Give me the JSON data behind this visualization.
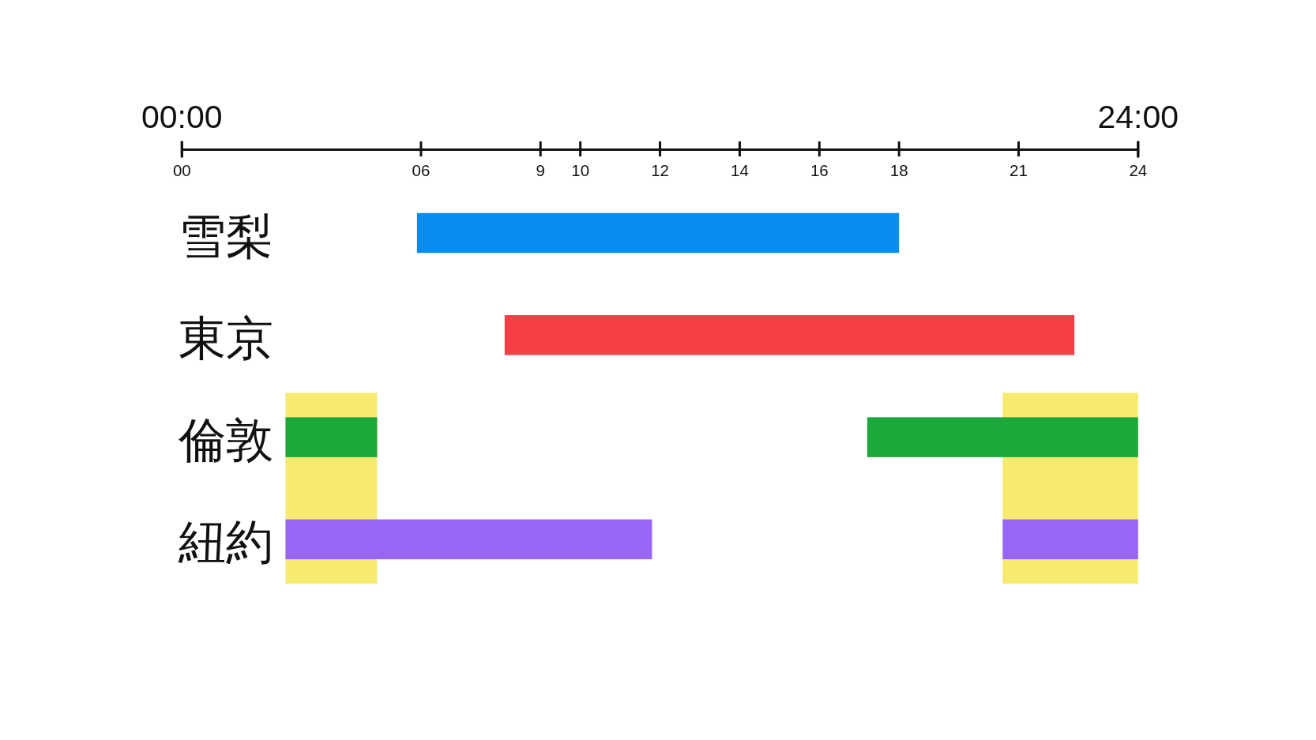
{
  "chart_data": {
    "type": "bar",
    "orientation": "horizontal",
    "categories": [
      "雪梨",
      "東京",
      "倫敦",
      "紐約"
    ],
    "series": [
      {
        "colors": [
          "#088cf0",
          "#f73d45",
          "#1ca83a",
          "#9866f7"
        ],
        "base": [
          5.9,
          8.1,
          2.6,
          2.6
        ],
        "values": [
          12.1,
          14.3,
          2.3,
          9.2
        ]
      },
      {
        "colors": [
          null,
          null,
          "#1ca83a",
          "#9866f7"
        ],
        "base": [
          null,
          null,
          17.2,
          20.6
        ],
        "values": [
          null,
          null,
          6.8,
          3.4
        ]
      }
    ],
    "xlim": [
      0,
      24
    ],
    "xticks": [
      {
        "value": 0,
        "label": "00"
      },
      {
        "value": 6,
        "label": "06"
      },
      9,
      10,
      12,
      14,
      16,
      18,
      21,
      24
    ],
    "x2lim": [
      0,
      24
    ],
    "x2ticks": [
      {
        "value": 0,
        "label": "00:00"
      },
      {
        "value": 24,
        "label": "24:00"
      }
    ],
    "bands": [
      {
        "axis": "x",
        "from": 2.6,
        "to": 4.9,
        "color": "#f7ea70"
      },
      {
        "axis": "x",
        "from": 20.6,
        "to": 24,
        "color": "#f7ea70"
      }
    ]
  }
}
